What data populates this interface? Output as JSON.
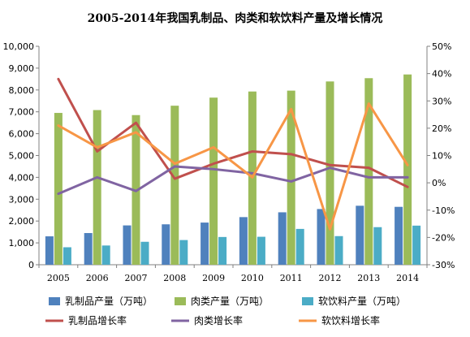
{
  "chart_data": {
    "type": "bar",
    "title": "2005-2014年我国乳制品、肉类和软饮料产量及增长情况",
    "categories": [
      "2005",
      "2006",
      "2007",
      "2008",
      "2009",
      "2010",
      "2011",
      "2012",
      "2013",
      "2014"
    ],
    "y_left": {
      "range": [
        0,
        10000
      ],
      "ticks": [
        "0",
        "1,000",
        "2,000",
        "3,000",
        "4,000",
        "5,000",
        "6,000",
        "7,000",
        "8,000",
        "9,000",
        "10,000"
      ]
    },
    "y_right": {
      "range": [
        -30,
        50
      ],
      "ticks": [
        "-30%",
        "-20%",
        "-10%",
        "0%",
        "10%",
        "20%",
        "30%",
        "40%",
        "50%"
      ]
    },
    "bar_series": [
      {
        "name": "乳制品产量（万吨）",
        "color": "#4f81bd",
        "values": [
          1300,
          1450,
          1800,
          1850,
          1930,
          2180,
          2400,
          2550,
          2700,
          2650
        ]
      },
      {
        "name": "肉类产量（万吨）",
        "color": "#9bbb59",
        "values": [
          6950,
          7080,
          6850,
          7280,
          7650,
          7930,
          7970,
          8390,
          8540,
          8710
        ]
      },
      {
        "name": "软饮料产量（万吨）",
        "color": "#4bacc6",
        "values": [
          800,
          880,
          1050,
          1130,
          1270,
          1280,
          1640,
          1310,
          1720,
          1790
        ]
      }
    ],
    "line_series": [
      {
        "name": "乳制品增长率",
        "color": "#c0504d",
        "values": [
          38,
          11.5,
          22,
          1.5,
          7,
          11.5,
          10.5,
          6.5,
          5.5,
          -1.5
        ]
      },
      {
        "name": "肉类增长率",
        "color": "#8064a2",
        "values": [
          -4,
          2,
          -3,
          6,
          5,
          3.5,
          0.5,
          5.5,
          2,
          2
        ]
      },
      {
        "name": "软饮料增长率",
        "color": "#f79646",
        "values": [
          21,
          13,
          18.5,
          7,
          13,
          2,
          27,
          -17,
          29,
          6.5
        ]
      }
    ],
    "grid": false,
    "legend_position": "bottom"
  }
}
